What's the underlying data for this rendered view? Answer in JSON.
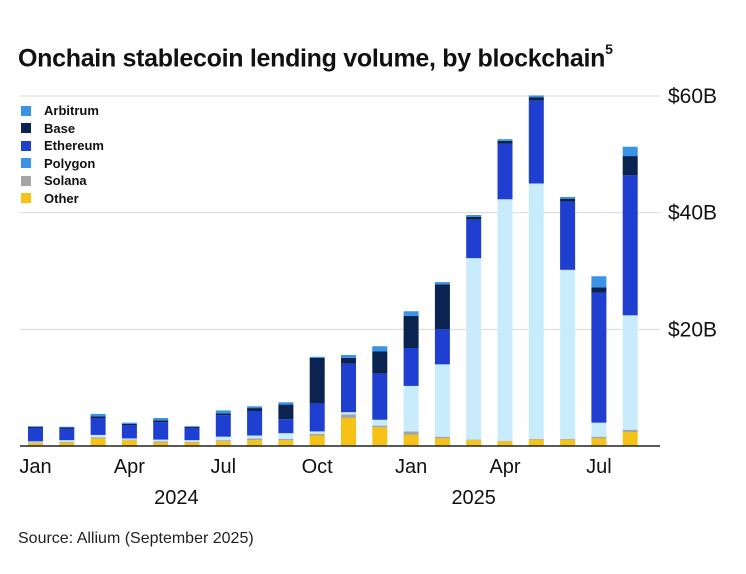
{
  "header": {
    "title": "Onchain stablecoin lending volume, by blockchain",
    "footnote_mark": "5"
  },
  "footer": {
    "source": "Source: Allium (September 2025)"
  },
  "colors": {
    "Arbitrum": "#3a93e6",
    "Base": "#0b2350",
    "Ethereum": "#1f3fd0",
    "Polygon": "#c9ecfc",
    "Solana": "#a6a6a6",
    "Other": "#f7c217",
    "grid": "#d9d9d9",
    "axis": "#222222"
  },
  "chart_data": {
    "type": "bar",
    "stacked": true,
    "title": "Onchain stablecoin lending volume, by blockchain",
    "xlabel": "",
    "ylabel": "",
    "ylim": [
      0,
      60
    ],
    "y_unit": "USD billions",
    "y_ticks": [
      {
        "value": 20,
        "label": "$20B"
      },
      {
        "value": 40,
        "label": "$40B"
      },
      {
        "value": 60,
        "label": "$60B"
      }
    ],
    "month_labels": [
      {
        "index": 0,
        "label": "Jan"
      },
      {
        "index": 3,
        "label": "Apr"
      },
      {
        "index": 6,
        "label": "Jul"
      },
      {
        "index": 9,
        "label": "Oct"
      },
      {
        "index": 12,
        "label": "Jan"
      },
      {
        "index": 15,
        "label": "Apr"
      },
      {
        "index": 18,
        "label": "Jul"
      }
    ],
    "year_labels": [
      {
        "center_index": 4.5,
        "label": "2024"
      },
      {
        "center_index": 14,
        "label": "2025"
      }
    ],
    "categories": [
      "2024-01",
      "2024-02",
      "2024-03",
      "2024-04",
      "2024-05",
      "2024-06",
      "2024-07",
      "2024-08",
      "2024-09",
      "2024-10",
      "2024-11",
      "2024-12",
      "2025-01",
      "2025-02",
      "2025-03",
      "2025-04",
      "2025-05",
      "2025-06",
      "2025-07",
      "2025-08"
    ],
    "legend_order": [
      "Arbitrum",
      "Base",
      "Ethereum",
      "Polygon",
      "Solana",
      "Other"
    ],
    "series": [
      {
        "name": "Other",
        "values": [
          0.5,
          0.6,
          1.3,
          1.0,
          0.6,
          0.6,
          0.8,
          1.0,
          1.0,
          1.8,
          4.8,
          3.2,
          1.9,
          1.3,
          1.0,
          0.8,
          1.1,
          1.1,
          1.3,
          2.4
        ]
      },
      {
        "name": "Solana",
        "values": [
          0.1,
          0.1,
          0.2,
          0.1,
          0.2,
          0.1,
          0.2,
          0.3,
          0.2,
          0.3,
          0.6,
          0.3,
          0.6,
          0.3,
          0.1,
          0.1,
          0.1,
          0.1,
          0.3,
          0.4
        ]
      },
      {
        "name": "Polygon",
        "values": [
          0.2,
          0.3,
          0.4,
          0.2,
          0.3,
          0.3,
          0.6,
          0.5,
          1.0,
          0.4,
          0.4,
          1.0,
          7.8,
          12.4,
          31.1,
          41.4,
          43.8,
          29.0,
          2.4,
          19.6
        ]
      },
      {
        "name": "Ethereum",
        "values": [
          2.3,
          2.0,
          2.9,
          2.3,
          3.0,
          2.1,
          3.7,
          4.2,
          2.4,
          4.8,
          8.3,
          7.9,
          6.5,
          6.0,
          6.6,
          9.5,
          14.2,
          11.7,
          22.3,
          24.0
        ]
      },
      {
        "name": "Base",
        "values": [
          0.2,
          0.2,
          0.3,
          0.2,
          0.3,
          0.2,
          0.3,
          0.5,
          2.5,
          7.8,
          1.0,
          3.8,
          5.5,
          7.7,
          0.5,
          0.5,
          0.6,
          0.5,
          0.9,
          3.3
        ]
      },
      {
        "name": "Arbitrum",
        "values": [
          0.1,
          0.1,
          0.4,
          0.2,
          0.4,
          0.1,
          0.5,
          0.3,
          0.4,
          0.2,
          0.5,
          0.9,
          0.8,
          0.4,
          0.3,
          0.3,
          0.3,
          0.3,
          1.9,
          1.6
        ]
      }
    ]
  }
}
